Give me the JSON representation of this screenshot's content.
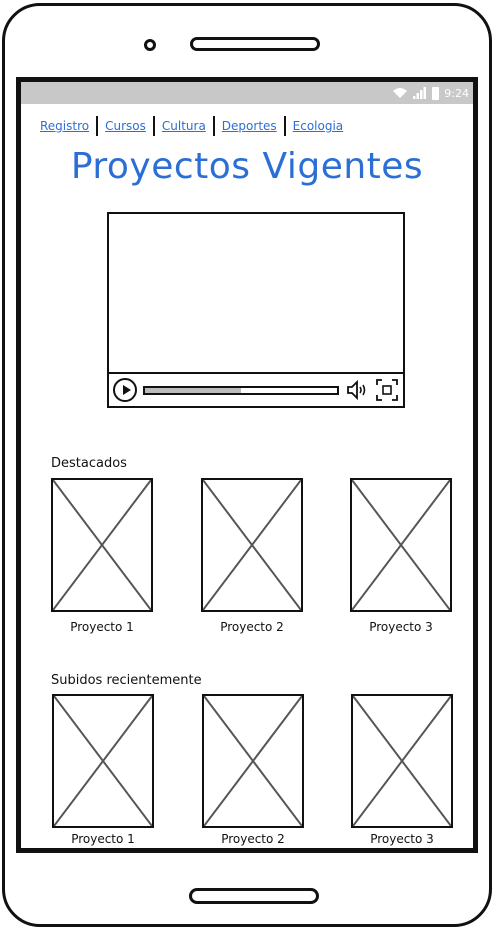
{
  "status": {
    "time": "9:24"
  },
  "nav": {
    "links": [
      "Registro",
      "Cursos",
      "Cultura",
      "Deportes",
      "Ecologia"
    ]
  },
  "page": {
    "title": "Proyectos Vigentes"
  },
  "video": {
    "progress": 0.5
  },
  "sections": [
    {
      "label": "Destacados",
      "items": [
        "Proyecto 1",
        "Proyecto 2",
        "Proyecto 3"
      ]
    },
    {
      "label": "Subidos recientemente",
      "items": [
        "Proyecto 1",
        "Proyecto 2",
        "Proyecto 3"
      ]
    }
  ],
  "colors": {
    "link": "#2b6fd6",
    "statusbar": "#c8c8c8"
  },
  "icons": [
    "camera-icon",
    "speaker-icon",
    "wifi-icon",
    "signal-icon",
    "battery-icon",
    "play-icon",
    "volume-icon",
    "fullscreen-icon",
    "image-placeholder-icon",
    "home-button-icon"
  ]
}
